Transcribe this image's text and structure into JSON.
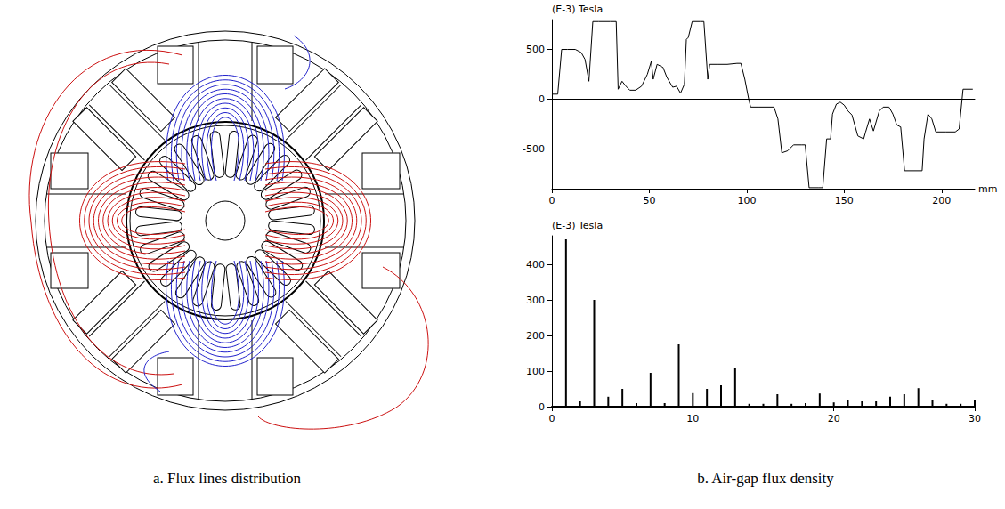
{
  "chart_data": [
    {
      "type": "line",
      "ylabel": "(E-3) Tesla",
      "xlabel": "mm",
      "color": "#000000",
      "grid": false,
      "x": [
        0,
        3,
        5,
        8,
        12,
        15,
        17,
        19,
        21,
        24,
        30,
        33,
        34,
        36,
        38,
        40,
        43,
        46,
        49,
        51,
        52,
        54,
        57,
        59,
        62,
        64,
        66,
        68,
        69,
        70,
        72,
        76,
        78,
        80,
        81,
        85,
        90,
        95,
        97,
        99,
        101,
        102,
        106,
        110,
        114,
        116,
        118,
        121,
        124,
        128,
        130,
        132,
        137,
        139,
        141,
        143,
        144,
        146,
        148,
        150,
        152,
        154,
        157,
        160,
        161,
        163,
        165,
        168,
        170,
        173,
        175,
        177,
        179,
        181,
        185,
        190,
        191,
        193,
        195,
        197,
        202,
        207,
        209,
        211,
        214,
        216
      ],
      "values": [
        50,
        50,
        500,
        500,
        500,
        470,
        400,
        180,
        780,
        780,
        780,
        780,
        100,
        180,
        130,
        90,
        90,
        130,
        250,
        380,
        200,
        350,
        320,
        220,
        120,
        130,
        60,
        150,
        600,
        620,
        780,
        780,
        780,
        200,
        350,
        350,
        350,
        360,
        360,
        200,
        0,
        -80,
        -80,
        -80,
        -80,
        -200,
        -540,
        -520,
        -460,
        -460,
        -460,
        -890,
        -890,
        -890,
        -400,
        -400,
        -150,
        -50,
        -30,
        -60,
        -120,
        -160,
        -370,
        -400,
        -330,
        -200,
        -320,
        -120,
        -80,
        -80,
        -150,
        -260,
        -280,
        -720,
        -720,
        -720,
        -400,
        -150,
        -200,
        -330,
        -330,
        -330,
        -300,
        100,
        100,
        100
      ],
      "xlim": [
        0,
        217
      ],
      "xticks": [
        0,
        50,
        100,
        150,
        200
      ],
      "ylim": [
        -900,
        800
      ],
      "yticks": [
        -500,
        0,
        500
      ]
    },
    {
      "type": "bar",
      "ylabel": "(E-3) Tesla",
      "color": "#000000",
      "grid": false,
      "x": [
        1,
        2,
        3,
        4,
        5,
        6,
        7,
        8,
        9,
        10,
        11,
        12,
        13,
        14,
        15,
        16,
        17,
        18,
        19,
        20,
        21,
        22,
        23,
        24,
        25,
        26,
        27,
        28,
        29,
        30
      ],
      "values": [
        470,
        15,
        300,
        28,
        50,
        10,
        95,
        10,
        175,
        38,
        50,
        60,
        108,
        8,
        8,
        35,
        8,
        10,
        37,
        12,
        20,
        15,
        15,
        28,
        35,
        52,
        18,
        8,
        8,
        20
      ],
      "xlim": [
        0,
        30
      ],
      "xticks": [
        0,
        10,
        20,
        30
      ],
      "ylim": [
        0,
        480
      ],
      "yticks": [
        0,
        100,
        200,
        300,
        400
      ]
    }
  ],
  "captions": [
    "a. Flux lines distribution",
    "b. Air-gap flux density"
  ]
}
